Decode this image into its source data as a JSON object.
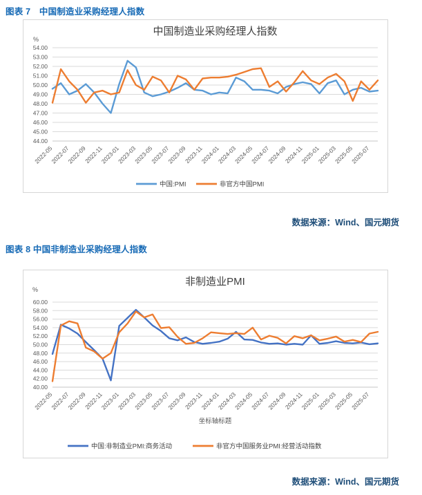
{
  "page": {
    "figure7_caption": "图表 7　中国制造业采购经理人指数",
    "figure8_caption": "图表 8 中国非制造业采购经理人指数",
    "source_note": "数据来源：Wind、国元期货"
  },
  "colors": {
    "caption_blue": "#1569b5",
    "source_navy": "#1f4e79",
    "gridline": "#d9d9d9",
    "axis_text": "#595959",
    "chart_title": "#3f3f3f",
    "series_blue_1": "#5b9bd5",
    "series_blue_2": "#4472c4",
    "series_orange": "#ed7d31"
  },
  "chart_data": [
    {
      "type": "line",
      "title": "中国制造业采购经理人指数",
      "ylabel": "%",
      "xlabel": "",
      "ylim": [
        44,
        54
      ],
      "ytick_step": 1,
      "grid": true,
      "legend_position": "bottom",
      "xtick_every": 2,
      "x": [
        "2022-05",
        "2022-06",
        "2022-07",
        "2022-08",
        "2022-09",
        "2022-10",
        "2022-11",
        "2022-12",
        "2023-01",
        "2023-02",
        "2023-03",
        "2023-04",
        "2023-05",
        "2023-06",
        "2023-07",
        "2023-08",
        "2023-09",
        "2023-10",
        "2023-11",
        "2023-12",
        "2024-01",
        "2024-02",
        "2024-03",
        "2024-04",
        "2024-05",
        "2024-06",
        "2024-07",
        "2024-08",
        "2024-09",
        "2024-10",
        "2024-11",
        "2024-12",
        "2025-01",
        "2025-02",
        "2025-03",
        "2025-04",
        "2025-05",
        "2025-06",
        "2025-07",
        "2025-08"
      ],
      "series": [
        {
          "name": "中国:PMI",
          "color": "#5b9bd5",
          "values": [
            49.6,
            50.2,
            49.0,
            49.4,
            50.1,
            49.2,
            48.0,
            47.0,
            50.1,
            52.6,
            51.9,
            49.2,
            48.8,
            49.0,
            49.3,
            49.7,
            50.2,
            49.5,
            49.4,
            49.0,
            49.2,
            49.1,
            50.8,
            50.4,
            49.5,
            49.5,
            49.4,
            49.1,
            49.8,
            50.1,
            50.3,
            50.1,
            49.1,
            50.2,
            50.5,
            49.0,
            49.5,
            49.7,
            49.3,
            49.4
          ]
        },
        {
          "name": "非官方中国PMI",
          "color": "#ed7d31",
          "values": [
            48.1,
            51.7,
            50.4,
            49.5,
            48.1,
            49.2,
            49.4,
            49.0,
            49.2,
            51.6,
            50.0,
            49.5,
            50.9,
            50.5,
            49.2,
            51.0,
            50.6,
            49.5,
            50.7,
            50.8,
            50.8,
            50.9,
            51.1,
            51.4,
            51.7,
            51.8,
            49.8,
            50.4,
            49.3,
            50.3,
            51.5,
            50.5,
            50.1,
            50.8,
            51.2,
            50.4,
            48.3,
            50.4,
            49.5,
            50.5
          ]
        }
      ]
    },
    {
      "type": "line",
      "title": "非制造业PMI",
      "ylabel": "%",
      "xlabel": "坐标轴标题",
      "ylim": [
        40,
        60
      ],
      "ytick_step": 2,
      "grid": true,
      "legend_position": "bottom",
      "xtick_every": 2,
      "x": [
        "2022-05",
        "2022-06",
        "2022-07",
        "2022-08",
        "2022-09",
        "2022-10",
        "2022-11",
        "2022-12",
        "2023-01",
        "2023-02",
        "2023-03",
        "2023-04",
        "2023-05",
        "2023-06",
        "2023-07",
        "2023-08",
        "2023-09",
        "2023-10",
        "2023-11",
        "2023-12",
        "2024-01",
        "2024-02",
        "2024-03",
        "2024-04",
        "2024-05",
        "2024-06",
        "2024-07",
        "2024-08",
        "2024-09",
        "2024-10",
        "2024-11",
        "2024-12",
        "2025-01",
        "2025-02",
        "2025-03",
        "2025-04",
        "2025-05",
        "2025-06",
        "2025-07",
        "2025-08"
      ],
      "series": [
        {
          "name": "中国:非制造业PMI:商务活动",
          "color": "#4472c4",
          "values": [
            47.8,
            54.7,
            53.8,
            52.6,
            50.6,
            48.7,
            46.7,
            41.6,
            54.4,
            56.3,
            58.2,
            56.4,
            54.5,
            53.2,
            51.5,
            51.0,
            51.7,
            50.6,
            50.2,
            50.4,
            50.7,
            51.4,
            53.0,
            51.2,
            51.1,
            50.5,
            50.2,
            50.3,
            50.0,
            50.2,
            50.0,
            52.2,
            50.2,
            50.4,
            50.8,
            50.4,
            50.3,
            50.5,
            50.1,
            50.3
          ]
        },
        {
          "name": "非官方中国服务业PMI:经营活动指数",
          "color": "#ed7d31",
          "values": [
            41.4,
            54.5,
            55.5,
            55.0,
            49.3,
            48.4,
            46.7,
            48.0,
            52.9,
            55.0,
            57.8,
            56.4,
            57.1,
            53.9,
            54.1,
            51.8,
            50.2,
            50.4,
            51.5,
            52.9,
            52.7,
            52.5,
            52.7,
            52.5,
            54.0,
            51.2,
            52.1,
            51.6,
            50.3,
            52.0,
            51.5,
            52.2,
            51.0,
            51.4,
            51.9,
            50.7,
            51.1,
            50.6,
            52.6,
            53.0
          ]
        }
      ]
    }
  ]
}
